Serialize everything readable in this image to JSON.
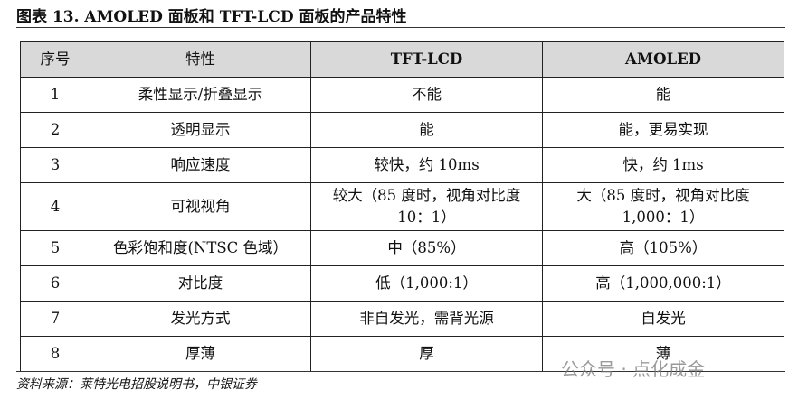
{
  "header": {
    "title": "图表 13. AMOLED 面板和 TFT-LCD 面板的产品特性"
  },
  "table": {
    "columns": [
      "序号",
      "特性",
      "TFT-LCD",
      "AMOLED"
    ],
    "rows": [
      [
        "1",
        "柔性显示/折叠显示",
        "不能",
        "能"
      ],
      [
        "2",
        "透明显示",
        "能",
        "能，更易实现"
      ],
      [
        "3",
        "响应速度",
        "较快，约 10ms",
        "快，约 1ms"
      ],
      [
        "4",
        "可视视角",
        "较大（85 度时，视角对比度 10：1）",
        "大（85 度时，视角对比度 1,000：1）"
      ],
      [
        "5",
        "色彩饱和度(NTSC 色域）",
        "中（85%）",
        "高（105%）"
      ],
      [
        "6",
        "对比度",
        "低（1,000:1）",
        "高（1,000,000:1）"
      ],
      [
        "7",
        "发光方式",
        "非自发光，需背光源",
        "自发光"
      ],
      [
        "8",
        "厚薄",
        "厚",
        "薄"
      ]
    ]
  },
  "footer": {
    "source": "资料来源：莱特光电招股说明书，中银证券"
  },
  "watermark": "公众号 · 点化成金"
}
